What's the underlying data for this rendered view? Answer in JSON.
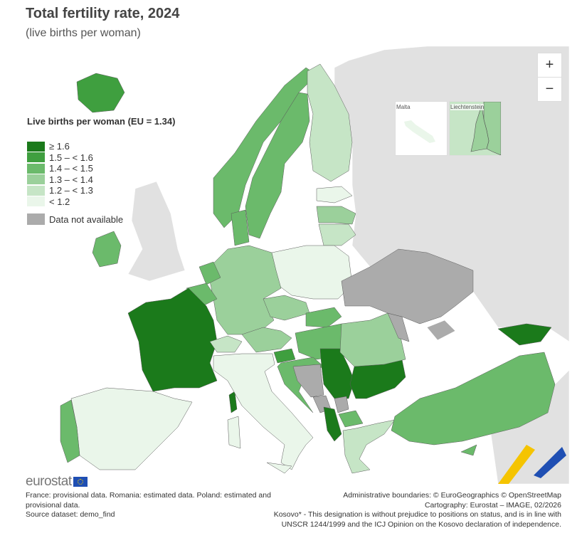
{
  "header": {
    "title": "Total fertility rate, 2024",
    "subtitle": "(live births per woman)"
  },
  "legend": {
    "title": "Live births per woman (EU = 1.34)",
    "classes": [
      {
        "label": "≥ 1.6",
        "color": "#1b7a1b"
      },
      {
        "label": "1.5 – < 1.6",
        "color": "#3f9f3f"
      },
      {
        "label": "1.4 – < 1.5",
        "color": "#6bba6b"
      },
      {
        "label": "1.3 – < 1.4",
        "color": "#9bd09b"
      },
      {
        "label": "1.2 – < 1.3",
        "color": "#c6e5c6"
      },
      {
        "label": "< 1.2",
        "color": "#eaf6ea"
      }
    ],
    "na": {
      "label": "Data not available",
      "color": "#ababab"
    }
  },
  "map_colors": {
    "sea": "#ffffff",
    "non_data_land": "#e1e1e1",
    "border": "#5a5a5a"
  },
  "regions": [
    {
      "name": "Iceland",
      "class": 1
    },
    {
      "name": "Norway",
      "class": 2
    },
    {
      "name": "Sweden",
      "class": 2
    },
    {
      "name": "Finland",
      "class": 4
    },
    {
      "name": "Estonia",
      "class": 5
    },
    {
      "name": "Latvia",
      "class": 3
    },
    {
      "name": "Lithuania",
      "class": 4
    },
    {
      "name": "Poland",
      "class": 5
    },
    {
      "name": "Germany",
      "class": 3
    },
    {
      "name": "Denmark",
      "class": 2
    },
    {
      "name": "Netherlands",
      "class": 2
    },
    {
      "name": "Belgium",
      "class": 2
    },
    {
      "name": "France",
      "class": 0
    },
    {
      "name": "Switzerland",
      "class": 4
    },
    {
      "name": "Austria",
      "class": 3
    },
    {
      "name": "Czechia",
      "class": 3
    },
    {
      "name": "Slovakia",
      "class": 2
    },
    {
      "name": "Hungary",
      "class": 2
    },
    {
      "name": "Slovenia",
      "class": 1
    },
    {
      "name": "Croatia",
      "class": 2
    },
    {
      "name": "Bosnia and Herzegovina",
      "class": "na"
    },
    {
      "name": "Serbia",
      "class": 0
    },
    {
      "name": "Montenegro",
      "class": "na"
    },
    {
      "name": "Kosovo*",
      "class": "na"
    },
    {
      "name": "Albania",
      "class": 0
    },
    {
      "name": "North Macedonia",
      "class": 2
    },
    {
      "name": "Bulgaria",
      "class": 0
    },
    {
      "name": "Romania",
      "class": 3
    },
    {
      "name": "Moldova",
      "class": "na"
    },
    {
      "name": "Ukraine",
      "class": "na"
    },
    {
      "name": "Greece",
      "class": 4
    },
    {
      "name": "Turkey",
      "class": 2
    },
    {
      "name": "Georgia",
      "class": 0
    },
    {
      "name": "Cyprus",
      "class": 2
    },
    {
      "name": "Italy",
      "class": 5
    },
    {
      "name": "Spain",
      "class": 5
    },
    {
      "name": "Portugal",
      "class": 2
    },
    {
      "name": "Ireland",
      "class": 2
    },
    {
      "name": "Malta",
      "class": 5
    },
    {
      "name": "Liechtenstein",
      "class": 3
    }
  ],
  "insets": {
    "malta": "Malta",
    "liechtenstein": "Liechtenstein"
  },
  "zoom": {
    "in": "+",
    "out": "−"
  },
  "footer": {
    "logo": "eurostat",
    "notes": [
      "France: provisional data. Romania: estimated data. Poland: estimated and provisional data.",
      "Source dataset: demo_find"
    ],
    "credits": [
      "Administrative boundaries: © EuroGeographics © OpenStreetMap",
      "Cartography: Eurostat – IMAGE, 02/2026",
      "Kosovo* - This designation is without prejudice to positions on status, and is in line with UNSCR 1244/1999 and the ICJ Opinion on the Kosovo declaration of independence."
    ]
  }
}
